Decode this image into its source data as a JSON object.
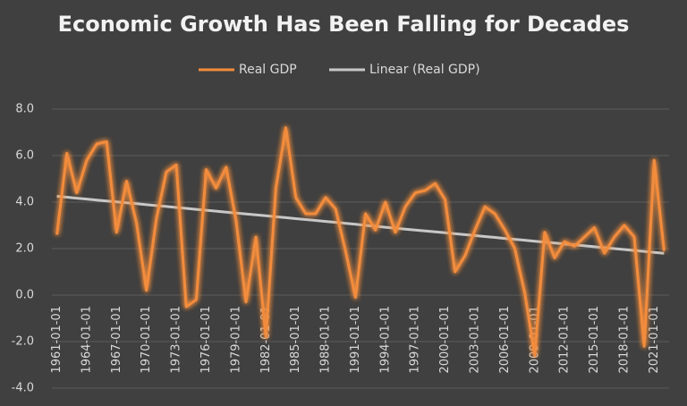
{
  "chart_data": {
    "type": "line",
    "title": "Economic Growth Has Been Falling for Decades",
    "categories": [
      "1961-01-01",
      null,
      null,
      "1964-01-01",
      null,
      null,
      "1967-01-01",
      null,
      null,
      "1970-01-01",
      null,
      null,
      "1973-01-01",
      null,
      null,
      "1976-01-01",
      null,
      null,
      "1979-01-01",
      null,
      null,
      "1982-01-01",
      null,
      null,
      "1985-01-01",
      null,
      null,
      "1988-01-01",
      null,
      null,
      "1991-01-01",
      null,
      null,
      "1994-01-01",
      null,
      null,
      "1997-01-01",
      null,
      null,
      "2000-01-01",
      null,
      null,
      "2003-01-01",
      null,
      null,
      "2006-01-01",
      null,
      null,
      "2009-01-01",
      null,
      null,
      "2012-01-01",
      null,
      null,
      "2015-01-01",
      null,
      null,
      "2018-01-01",
      null,
      null,
      "2021-01-01",
      null
    ],
    "series": [
      {
        "name": "Real GDP",
        "color": "#f28c3c",
        "values": [
          2.6,
          6.1,
          4.4,
          5.8,
          6.5,
          6.6,
          2.7,
          4.9,
          3.1,
          0.2,
          3.3,
          5.3,
          5.6,
          -0.5,
          -0.2,
          5.4,
          4.6,
          5.5,
          3.2,
          -0.3,
          2.5,
          -1.8,
          4.6,
          7.2,
          4.2,
          3.5,
          3.5,
          4.2,
          3.7,
          1.9,
          -0.1,
          3.5,
          2.8,
          4.0,
          2.7,
          3.8,
          4.4,
          4.5,
          4.8,
          4.1,
          1.0,
          1.7,
          2.8,
          3.8,
          3.5,
          2.8,
          2.0,
          0.1,
          -2.6,
          2.7,
          1.6,
          2.3,
          2.1,
          2.5,
          2.9,
          1.8,
          2.5,
          3.0,
          2.5,
          -2.2,
          5.8,
          1.9
        ]
      },
      {
        "name": "Linear (Real GDP)",
        "color": "#c8c8c8",
        "values": [
          4.25,
          4.21,
          4.17,
          4.13,
          4.09,
          4.05,
          4.01,
          3.97,
          3.93,
          3.89,
          3.85,
          3.81,
          3.77,
          3.73,
          3.69,
          3.65,
          3.61,
          3.57,
          3.53,
          3.49,
          3.45,
          3.41,
          3.37,
          3.33,
          3.29,
          3.25,
          3.21,
          3.17,
          3.13,
          3.09,
          3.05,
          3.0,
          2.96,
          2.92,
          2.88,
          2.84,
          2.8,
          2.76,
          2.72,
          2.68,
          2.64,
          2.6,
          2.56,
          2.52,
          2.48,
          2.44,
          2.4,
          2.36,
          2.32,
          2.28,
          2.24,
          2.2,
          2.16,
          2.12,
          2.08,
          2.04,
          2.0,
          1.96,
          1.92,
          1.88,
          1.84,
          1.8
        ]
      }
    ],
    "ylim": [
      -4,
      8
    ],
    "yticks": [
      {
        "value": -4,
        "label": "-4.0"
      },
      {
        "value": -2,
        "label": "-2.0"
      },
      {
        "value": 0,
        "label": "0.0"
      },
      {
        "value": 2,
        "label": "2.0"
      },
      {
        "value": 4,
        "label": "4.0"
      },
      {
        "value": 6,
        "label": "6.0"
      },
      {
        "value": 8,
        "label": "8.0"
      }
    ],
    "grid": true,
    "legend": "top"
  }
}
